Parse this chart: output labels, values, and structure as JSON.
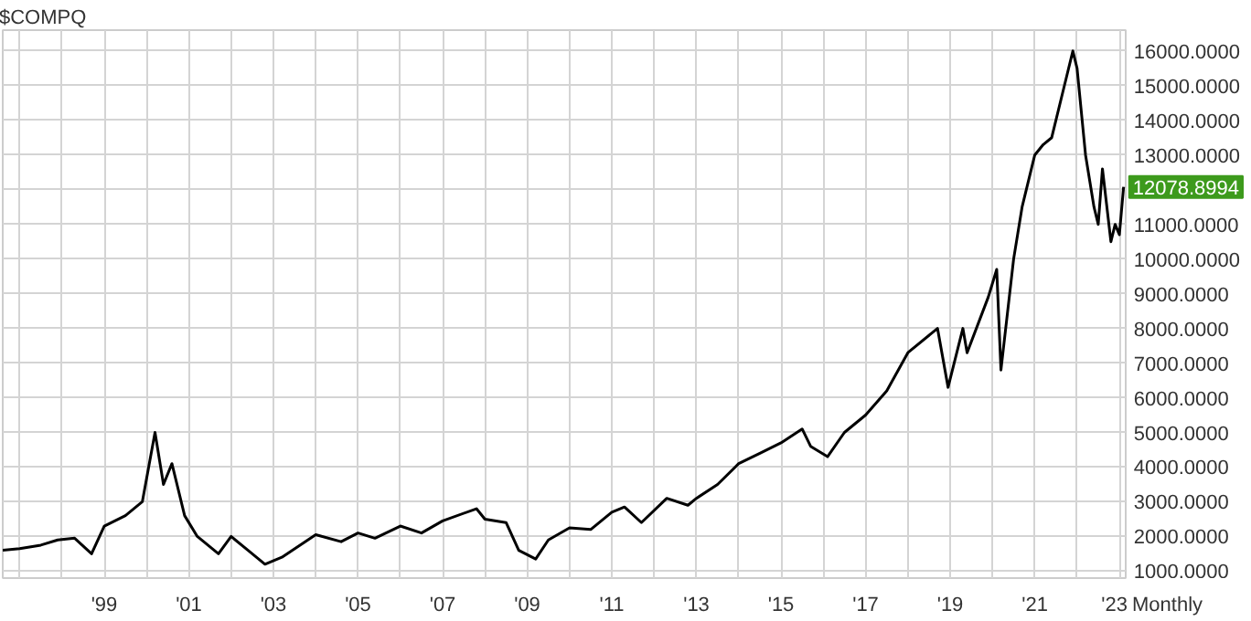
{
  "chart_data": {
    "type": "line",
    "title": "$COMPQ",
    "x": [
      1996.6,
      1997.0,
      1997.5,
      1997.9,
      1998.3,
      1998.7,
      1999.0,
      1999.5,
      1999.9,
      2000.2,
      2000.4,
      2000.6,
      2000.9,
      2001.2,
      2001.7,
      2002.0,
      2002.4,
      2002.8,
      2003.2,
      2004.0,
      2004.6,
      2005.0,
      2005.4,
      2006.0,
      2006.5,
      2007.0,
      2007.8,
      2008.0,
      2008.5,
      2008.8,
      2009.2,
      2009.5,
      2010.0,
      2010.5,
      2011.0,
      2011.3,
      2011.7,
      2012.3,
      2012.8,
      2013.0,
      2013.5,
      2014.0,
      2014.5,
      2015.0,
      2015.5,
      2015.7,
      2016.1,
      2016.5,
      2017.0,
      2017.5,
      2018.0,
      2018.7,
      2018.95,
      2019.3,
      2019.4,
      2019.9,
      2020.1,
      2020.2,
      2020.5,
      2020.7,
      2021.0,
      2021.2,
      2021.4,
      2021.7,
      2021.9,
      2022.0,
      2022.2,
      2022.4,
      2022.5,
      2022.6,
      2022.8,
      2022.9,
      2023.0,
      2023.1
    ],
    "series": [
      {
        "color": "#000000",
        "values": [
          1600,
          1650,
          1750,
          1900,
          1950,
          1500,
          2300,
          2600,
          3000,
          5000,
          3500,
          4100,
          2600,
          2000,
          1500,
          2000,
          1600,
          1200,
          1400,
          2050,
          1850,
          2100,
          1950,
          2300,
          2100,
          2450,
          2800,
          2500,
          2400,
          1600,
          1350,
          1900,
          2250,
          2200,
          2700,
          2850,
          2400,
          3100,
          2900,
          3100,
          3500,
          4100,
          4400,
          4700,
          5100,
          4600,
          4300,
          5000,
          5500,
          6200,
          7300,
          8000,
          6300,
          8000,
          7300,
          8900,
          9700,
          6800,
          10000,
          11500,
          13000,
          13300,
          13500,
          15000,
          16000,
          15500,
          13000,
          11500,
          11000,
          12600,
          10500,
          11000,
          10700,
          12078.8994
        ]
      }
    ],
    "xlim": [
      1996.6,
      2023.15
    ],
    "xticks": [
      {
        "value": 1997,
        "label": null
      },
      {
        "value": 1998,
        "label": null
      },
      {
        "value": 1999,
        "label": "'99"
      },
      {
        "value": 2000,
        "label": null
      },
      {
        "value": 2001,
        "label": "'01"
      },
      {
        "value": 2002,
        "label": null
      },
      {
        "value": 2003,
        "label": "'03"
      },
      {
        "value": 2004,
        "label": null
      },
      {
        "value": 2005,
        "label": "'05"
      },
      {
        "value": 2006,
        "label": null
      },
      {
        "value": 2007,
        "label": "'07"
      },
      {
        "value": 2008,
        "label": null
      },
      {
        "value": 2009,
        "label": "'09"
      },
      {
        "value": 2010,
        "label": null
      },
      {
        "value": 2011,
        "label": "'11"
      },
      {
        "value": 2012,
        "label": null
      },
      {
        "value": 2013,
        "label": "'13"
      },
      {
        "value": 2014,
        "label": null
      },
      {
        "value": 2015,
        "label": "'15"
      },
      {
        "value": 2016,
        "label": null
      },
      {
        "value": 2017,
        "label": "'17"
      },
      {
        "value": 2018,
        "label": null
      },
      {
        "value": 2019,
        "label": "'19"
      },
      {
        "value": 2020,
        "label": null
      },
      {
        "value": 2021,
        "label": "'21"
      },
      {
        "value": 2022,
        "label": null
      },
      {
        "value": 2023,
        "label": "'23"
      }
    ],
    "ylim": [
      800,
      16600
    ],
    "yticks": [
      {
        "value": 1000,
        "label": "1000.0000"
      },
      {
        "value": 2000,
        "label": "2000.0000"
      },
      {
        "value": 3000,
        "label": "3000.0000"
      },
      {
        "value": 4000,
        "label": "4000.0000"
      },
      {
        "value": 5000,
        "label": "5000.0000"
      },
      {
        "value": 6000,
        "label": "6000.0000"
      },
      {
        "value": 7000,
        "label": "7000.0000"
      },
      {
        "value": 8000,
        "label": "8000.0000"
      },
      {
        "value": 9000,
        "label": "9000.0000"
      },
      {
        "value": 10000,
        "label": "10000.0000"
      },
      {
        "value": 11000,
        "label": "11000.0000"
      },
      {
        "value": 12000,
        "label": null
      },
      {
        "value": 13000,
        "label": "13000.0000"
      },
      {
        "value": 14000,
        "label": "14000.0000"
      },
      {
        "value": 15000,
        "label": "15000.0000"
      },
      {
        "value": 16000,
        "label": "16000.0000"
      }
    ],
    "grid": true,
    "annotations": [
      {
        "text": "12078.8994",
        "x": 2023.1,
        "y": 12078.8994
      },
      "Monthly"
    ]
  }
}
